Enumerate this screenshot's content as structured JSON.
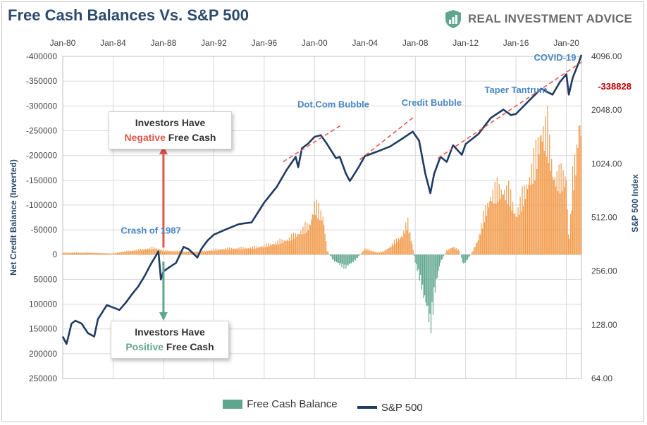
{
  "title": "Free Cash Balances Vs. S&P 500",
  "brand": {
    "name": "REAL INVESTMENT ADVICE",
    "logo_icon": "shield-logo-icon",
    "logo_color": "#5fa68f"
  },
  "colors": {
    "positive_bar": "#f29a4a",
    "negative_bar": "#5fa68f",
    "line": "#1f3b63",
    "trend": "#e85a4f",
    "annotation": "#4a86c5",
    "callout_red": "#e0574a",
    "callout_green": "#5fa68f",
    "grid": "#d9d9d9",
    "latest_value": "#c00000"
  },
  "callouts": {
    "negative": {
      "line1": "Investors Have",
      "emph": "Negative",
      "rest": " Free Cash"
    },
    "positive": {
      "line1": "Investors Have",
      "emph": "Positive",
      "rest": " Free Cash"
    }
  },
  "chart_data": {
    "type": "bar",
    "title": "Free Cash Balances Vs. S&P 500",
    "x_tick_labels": [
      "Jan-80",
      "Jan-84",
      "Jan-88",
      "Jan-92",
      "Jan-96",
      "Jan-00",
      "Jan-04",
      "Jan-08",
      "Jan-12",
      "Jan-16",
      "Jan-20"
    ],
    "x_range": [
      1980,
      2021.2
    ],
    "left_axis": {
      "label": "Net Credit Balance (Inverted)",
      "inverted": true,
      "ylim": [
        -400000,
        250000
      ],
      "ticks": [
        "-400000",
        "-350000",
        "-300000",
        "-250000",
        "-200000",
        "-150000",
        "-100000",
        "-50000",
        "0",
        "50000",
        "100000",
        "150000",
        "200000",
        "250000"
      ]
    },
    "right_axis": {
      "label": "S&P 500 Index",
      "scale": "log2",
      "ylim": [
        64,
        4096
      ],
      "ticks": [
        "4096.00",
        "2048.00",
        "1024.00",
        "512.00",
        "256.00",
        "128.00",
        "64.00"
      ]
    },
    "legend": [
      "Free Cash Balance",
      "S&P 500"
    ],
    "legend_position": "bottom",
    "grid": true,
    "series": [
      {
        "name": "Free Cash Balance",
        "kind": "bar",
        "axis": "left",
        "points": [
          [
            1980.0,
            -5000
          ],
          [
            1982.0,
            -5000
          ],
          [
            1983.0,
            -4000
          ],
          [
            1984.0,
            -3000
          ],
          [
            1985.0,
            -8000
          ],
          [
            1986.0,
            -12000
          ],
          [
            1987.3,
            -17000
          ],
          [
            1988.0,
            -10000
          ],
          [
            1989.0,
            -9000
          ],
          [
            1990.0,
            -7000
          ],
          [
            1991.0,
            -8000
          ],
          [
            1992.0,
            -12000
          ],
          [
            1993.0,
            -15000
          ],
          [
            1994.0,
            -16000
          ],
          [
            1995.0,
            -17000
          ],
          [
            1996.0,
            -22000
          ],
          [
            1997.0,
            -30000
          ],
          [
            1998.0,
            -40000
          ],
          [
            1999.0,
            -60000
          ],
          [
            1999.6,
            -75000
          ],
          [
            2000.0,
            -125000
          ],
          [
            2000.3,
            -110000
          ],
          [
            2000.7,
            -95000
          ],
          [
            2001.0,
            -10000
          ],
          [
            2001.5,
            15000
          ],
          [
            2002.0,
            25000
          ],
          [
            2002.5,
            32000
          ],
          [
            2003.0,
            20000
          ],
          [
            2003.5,
            5000
          ],
          [
            2004.0,
            -15000
          ],
          [
            2004.5,
            -10000
          ],
          [
            2005.0,
            -5000
          ],
          [
            2005.5,
            -8000
          ],
          [
            2006.0,
            -20000
          ],
          [
            2006.5,
            -35000
          ],
          [
            2007.0,
            -50000
          ],
          [
            2007.4,
            -80000
          ],
          [
            2007.8,
            -20000
          ],
          [
            2008.0,
            20000
          ],
          [
            2008.4,
            60000
          ],
          [
            2008.7,
            110000
          ],
          [
            2009.0,
            145000
          ],
          [
            2009.2,
            185000
          ],
          [
            2009.5,
            100000
          ],
          [
            2009.8,
            50000
          ],
          [
            2010.0,
            20000
          ],
          [
            2010.5,
            -10000
          ],
          [
            2011.0,
            -20000
          ],
          [
            2011.5,
            -10000
          ],
          [
            2011.8,
            25000
          ],
          [
            2012.0,
            20000
          ],
          [
            2012.5,
            -5000
          ],
          [
            2013.0,
            -40000
          ],
          [
            2013.5,
            -100000
          ],
          [
            2014.0,
            -150000
          ],
          [
            2014.5,
            -160000
          ],
          [
            2015.0,
            -165000
          ],
          [
            2015.5,
            -150000
          ],
          [
            2016.0,
            -100000
          ],
          [
            2016.5,
            -140000
          ],
          [
            2017.0,
            -190000
          ],
          [
            2017.5,
            -230000
          ],
          [
            2018.0,
            -320000
          ],
          [
            2018.5,
            -300000
          ],
          [
            2019.0,
            -200000
          ],
          [
            2019.5,
            -190000
          ],
          [
            2020.0,
            -200000
          ],
          [
            2020.2,
            -20000
          ],
          [
            2020.5,
            -180000
          ],
          [
            2020.8,
            -250000
          ],
          [
            2021.0,
            -338828
          ]
        ]
      },
      {
        "name": "S&P 500",
        "kind": "line",
        "axis": "right",
        "points": [
          [
            1980.0,
            110
          ],
          [
            1980.3,
            100
          ],
          [
            1980.7,
            130
          ],
          [
            1981.0,
            135
          ],
          [
            1981.5,
            130
          ],
          [
            1982.0,
            115
          ],
          [
            1982.5,
            110
          ],
          [
            1982.8,
            138
          ],
          [
            1983.0,
            145
          ],
          [
            1983.5,
            165
          ],
          [
            1984.0,
            160
          ],
          [
            1984.5,
            155
          ],
          [
            1985.0,
            170
          ],
          [
            1985.5,
            190
          ],
          [
            1986.0,
            210
          ],
          [
            1986.5,
            240
          ],
          [
            1987.0,
            280
          ],
          [
            1987.6,
            330
          ],
          [
            1987.8,
            230
          ],
          [
            1988.0,
            255
          ],
          [
            1988.5,
            270
          ],
          [
            1989.0,
            285
          ],
          [
            1989.6,
            350
          ],
          [
            1990.0,
            340
          ],
          [
            1990.7,
            305
          ],
          [
            1991.0,
            340
          ],
          [
            1991.5,
            380
          ],
          [
            1992.0,
            410
          ],
          [
            1993.0,
            440
          ],
          [
            1994.0,
            470
          ],
          [
            1995.0,
            480
          ],
          [
            1996.0,
            620
          ],
          [
            1997.0,
            760
          ],
          [
            1997.8,
            950
          ],
          [
            1998.5,
            1120
          ],
          [
            1998.7,
            980
          ],
          [
            1999.0,
            1250
          ],
          [
            1999.5,
            1330
          ],
          [
            2000.0,
            1450
          ],
          [
            2000.5,
            1480
          ],
          [
            2001.0,
            1320
          ],
          [
            2001.7,
            1100
          ],
          [
            2002.0,
            1120
          ],
          [
            2002.5,
            900
          ],
          [
            2002.8,
            820
          ],
          [
            2003.0,
            860
          ],
          [
            2003.5,
            980
          ],
          [
            2004.0,
            1130
          ],
          [
            2005.0,
            1200
          ],
          [
            2006.0,
            1280
          ],
          [
            2007.0,
            1420
          ],
          [
            2007.8,
            1550
          ],
          [
            2008.3,
            1380
          ],
          [
            2008.8,
            900
          ],
          [
            2009.2,
            700
          ],
          [
            2009.5,
            900
          ],
          [
            2010.0,
            1120
          ],
          [
            2010.5,
            1050
          ],
          [
            2011.0,
            1300
          ],
          [
            2011.7,
            1150
          ],
          [
            2012.0,
            1320
          ],
          [
            2013.0,
            1500
          ],
          [
            2014.0,
            1850
          ],
          [
            2015.0,
            2060
          ],
          [
            2015.6,
            1920
          ],
          [
            2016.0,
            1950
          ],
          [
            2017.0,
            2300
          ],
          [
            2018.0,
            2700
          ],
          [
            2018.9,
            2500
          ],
          [
            2019.5,
            2950
          ],
          [
            2020.0,
            3250
          ],
          [
            2020.2,
            2500
          ],
          [
            2020.5,
            3100
          ],
          [
            2021.0,
            3800
          ],
          [
            2021.2,
            4180
          ]
        ]
      },
      {
        "name": "Trend lines",
        "kind": "dashed",
        "axis": "right",
        "segments": [
          [
            [
              1997.5,
              1050
            ],
            [
              2002.2,
              1700
            ]
          ],
          [
            [
              2003.6,
              1080
            ],
            [
              2008.0,
              1900
            ]
          ],
          [
            [
              2009.8,
              1100
            ],
            [
              2021.2,
              3800
            ]
          ]
        ]
      }
    ],
    "annotations": [
      {
        "text": "Crash of 1987",
        "x": 1987.0,
        "y": 430,
        "axis": "right"
      },
      {
        "text": "Dot.Com Bubble",
        "x": 2001.5,
        "y": 2200,
        "axis": "right"
      },
      {
        "text": "Credit Bubble",
        "x": 2009.3,
        "y": 2250,
        "axis": "right"
      },
      {
        "text": "Taper Tantrum",
        "x": 2016.0,
        "y": 2650,
        "axis": "right"
      },
      {
        "text": "COVID-19",
        "x": 2019.1,
        "y": 4020,
        "axis": "right"
      },
      {
        "text": "-338828",
        "x": 2022.5,
        "y": -338828,
        "axis": "left"
      }
    ]
  }
}
